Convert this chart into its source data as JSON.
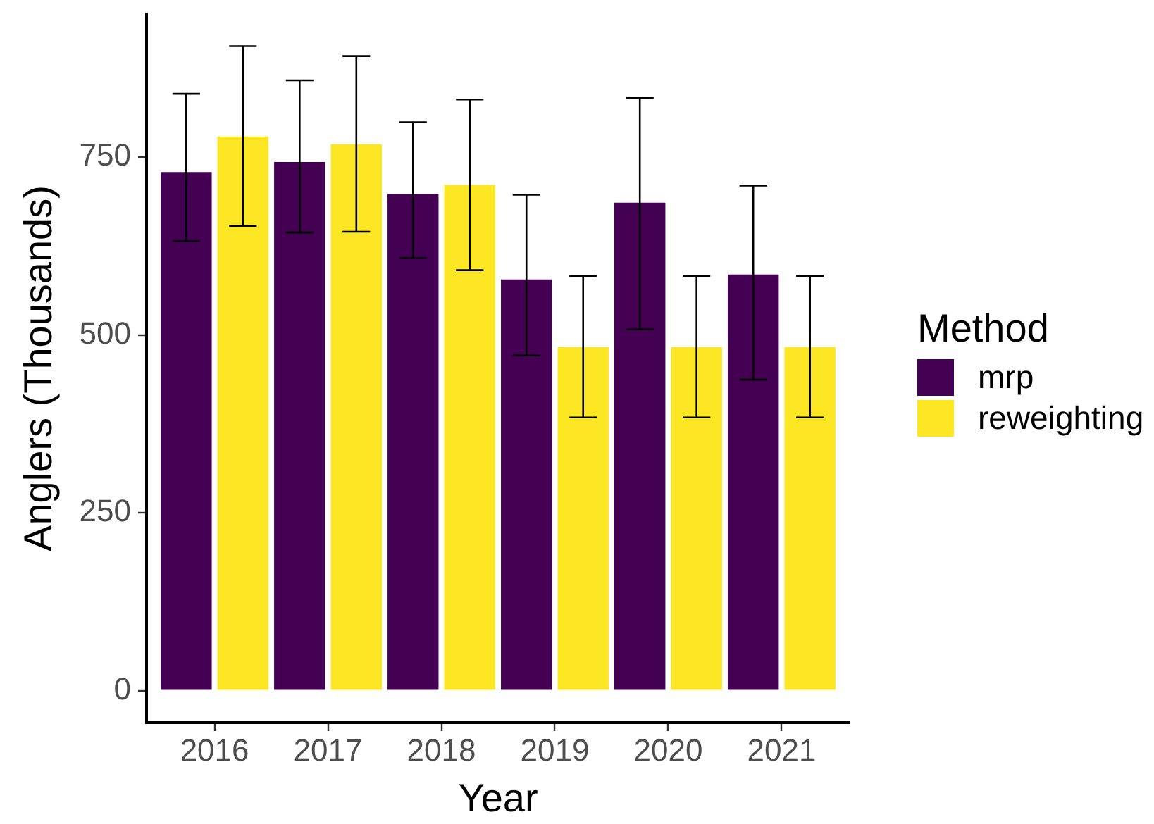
{
  "chart_data": {
    "type": "bar",
    "xlabel": "Year",
    "ylabel": "Anglers (Thousands)",
    "legend_title": "Method",
    "categories": [
      "2016",
      "2017",
      "2018",
      "2019",
      "2020",
      "2021"
    ],
    "series": [
      {
        "name": "mrp",
        "color": "#440154",
        "values": [
          729,
          743,
          698,
          578,
          686,
          585
        ],
        "errors": [
          [
            632,
            839
          ],
          [
            644,
            858
          ],
          [
            608,
            799
          ],
          [
            471,
            697
          ],
          [
            508,
            833
          ],
          [
            437,
            710
          ]
        ]
      },
      {
        "name": "reweighting",
        "color": "#fde725",
        "values": [
          779,
          768,
          711,
          483,
          483,
          483
        ],
        "errors": [
          [
            653,
            906
          ],
          [
            645,
            892
          ],
          [
            591,
            831
          ],
          [
            384,
            583
          ],
          [
            384,
            583
          ],
          [
            384,
            583
          ]
        ]
      }
    ],
    "ylim": [
      -45,
      951
    ],
    "yticks": [
      0,
      250,
      500,
      750
    ],
    "grid": false,
    "legend": "right"
  }
}
